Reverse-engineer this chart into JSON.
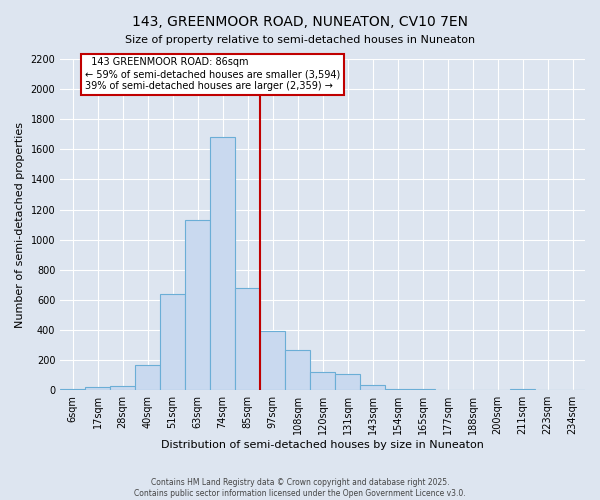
{
  "title": "143, GREENMOOR ROAD, NUNEATON, CV10 7EN",
  "subtitle": "Size of property relative to semi-detached houses in Nuneaton",
  "xlabel": "Distribution of semi-detached houses by size in Nuneaton",
  "ylabel": "Number of semi-detached properties",
  "categories": [
    "6sqm",
    "17sqm",
    "28sqm",
    "40sqm",
    "51sqm",
    "63sqm",
    "74sqm",
    "85sqm",
    "97sqm",
    "108sqm",
    "120sqm",
    "131sqm",
    "143sqm",
    "154sqm",
    "165sqm",
    "177sqm",
    "188sqm",
    "200sqm",
    "211sqm",
    "223sqm",
    "234sqm"
  ],
  "values": [
    5,
    20,
    30,
    170,
    640,
    1130,
    1680,
    680,
    390,
    270,
    120,
    110,
    35,
    10,
    5,
    2,
    0,
    0,
    5,
    0,
    0
  ],
  "property_line_index": 7,
  "annotation_title": "143 GREENMOOR ROAD: 86sqm",
  "annotation_line1": "← 59% of semi-detached houses are smaller (3,594)",
  "annotation_line2": "39% of semi-detached houses are larger (2,359) →",
  "bar_color": "#c9d9ef",
  "bar_edge_color": "#6baed6",
  "property_line_color": "#c00000",
  "annotation_box_edge_color": "#c00000",
  "background_color": "#dde5f0",
  "plot_background": "#dde5f0",
  "footer1": "Contains HM Land Registry data © Crown copyright and database right 2025.",
  "footer2": "Contains public sector information licensed under the Open Government Licence v3.0.",
  "ylim": [
    0,
    2200
  ],
  "yticks": [
    0,
    200,
    400,
    600,
    800,
    1000,
    1200,
    1400,
    1600,
    1800,
    2000,
    2200
  ]
}
